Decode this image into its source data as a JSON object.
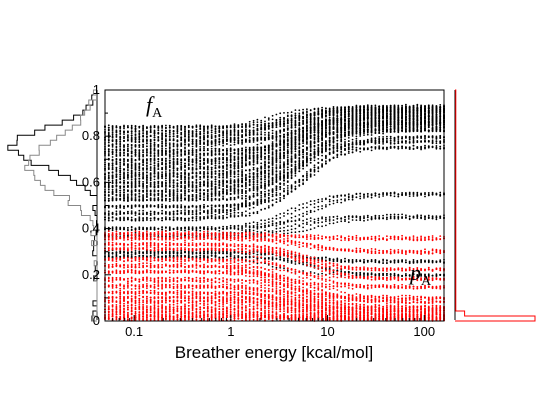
{
  "chart_data": {
    "type": "scatter",
    "xlabel": "Breather energy [kcal/mol]",
    "ylabel": "",
    "xscale": "log",
    "xlim": [
      0.05,
      160
    ],
    "ylim": [
      0,
      1
    ],
    "x_ticks": [
      {
        "value": 0.1,
        "label": "0.1"
      },
      {
        "value": 1,
        "label": "1"
      },
      {
        "value": 10,
        "label": "10"
      },
      {
        "value": 100,
        "label": "100"
      }
    ],
    "y_ticks": [
      {
        "value": 0,
        "label": "0"
      },
      {
        "value": 0.2,
        "label": "0.2"
      },
      {
        "value": 0.4,
        "label": "0.4"
      },
      {
        "value": 0.6,
        "label": "0.6"
      },
      {
        "value": 0.8,
        "label": "0.8"
      },
      {
        "value": 1,
        "label": "1"
      }
    ],
    "grid": false,
    "annotations": [
      {
        "main": "f",
        "sub": "A",
        "color": "#000000",
        "x": 0.065,
        "y": 0.92
      },
      {
        "main": "p",
        "sub": "A",
        "color": "#000000",
        "x": 58,
        "y": 0.19
      }
    ],
    "series": [
      {
        "color": "#000000",
        "description_level": "trajectories",
        "trajectories": [
          {
            "start": 0.84,
            "end": 0.93
          },
          {
            "start": 0.82,
            "end": 0.92
          },
          {
            "start": 0.8,
            "end": 0.92
          },
          {
            "start": 0.78,
            "end": 0.91
          },
          {
            "start": 0.76,
            "end": 0.91
          },
          {
            "start": 0.74,
            "end": 0.9
          },
          {
            "start": 0.72,
            "end": 0.9
          },
          {
            "start": 0.7,
            "end": 0.89
          },
          {
            "start": 0.68,
            "end": 0.88
          },
          {
            "start": 0.66,
            "end": 0.88
          },
          {
            "start": 0.64,
            "end": 0.87
          },
          {
            "start": 0.62,
            "end": 0.86
          },
          {
            "start": 0.6,
            "end": 0.86
          },
          {
            "start": 0.58,
            "end": 0.85
          },
          {
            "start": 0.56,
            "end": 0.84
          },
          {
            "start": 0.54,
            "end": 0.83
          },
          {
            "start": 0.52,
            "end": 0.82
          },
          {
            "start": 0.5,
            "end": 0.8
          },
          {
            "start": 0.47,
            "end": 0.78
          },
          {
            "start": 0.44,
            "end": 0.75
          },
          {
            "start": 0.4,
            "end": 0.55
          },
          {
            "start": 0.37,
            "end": 0.45
          },
          {
            "start": 0.3,
            "end": 0.26
          },
          {
            "start": 0.28,
            "end": 0.2
          }
        ]
      },
      {
        "color": "#ff0000",
        "description_level": "trajectories",
        "trajectories": [
          {
            "start": 0.38,
            "end": 0.36
          },
          {
            "start": 0.36,
            "end": 0.3
          },
          {
            "start": 0.33,
            "end": 0.22
          },
          {
            "start": 0.31,
            "end": 0.18
          },
          {
            "start": 0.27,
            "end": 0.15
          },
          {
            "start": 0.24,
            "end": 0.1
          },
          {
            "start": 0.21,
            "end": 0.08
          },
          {
            "start": 0.18,
            "end": 0.06
          },
          {
            "start": 0.15,
            "end": 0.05
          },
          {
            "start": 0.12,
            "end": 0.04
          },
          {
            "start": 0.1,
            "end": 0.03
          },
          {
            "start": 0.08,
            "end": 0.02
          },
          {
            "start": 0.06,
            "end": 0.02
          },
          {
            "start": 0.04,
            "end": 0.01
          },
          {
            "start": 0.02,
            "end": 0.01
          },
          {
            "start": 0.01,
            "end": 0.0
          }
        ]
      }
    ],
    "side_histograms": [
      {
        "position": "left",
        "orientation": "vertical",
        "series_colors": [
          "#000000",
          "#888888"
        ]
      },
      {
        "position": "right",
        "orientation": "vertical",
        "series_colors": [
          "#ff0000"
        ]
      }
    ]
  }
}
